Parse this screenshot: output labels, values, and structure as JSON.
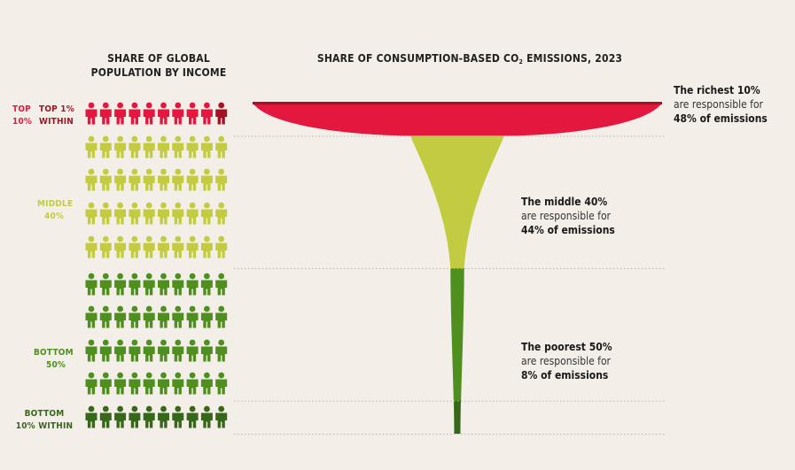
{
  "headers": {
    "population_line1": "SHARE OF GLOBAL",
    "population_line2": "POPULATION BY INCOME",
    "emissions_pre": "SHARE OF CONSUMPTION-BASED CO",
    "emissions_sub": "2",
    "emissions_post": " EMISSIONS, 2023"
  },
  "labels": {
    "top10_l1": "TOP",
    "top10_l2": "10%",
    "top1_l1": "TOP 1%",
    "top1_l2": "WITHIN",
    "middle_l1": "MIDDLE",
    "middle_l2": "40%",
    "bottom_l1": "BOTTOM",
    "bottom_l2": "50%",
    "bottom10_l1": "BOTTOM",
    "bottom10_l2": "10% WITHIN"
  },
  "callouts": {
    "rich_l1": "The richest 10%",
    "rich_l2": "are responsible for",
    "rich_l3": "48% of emissions",
    "middle_l1": "The middle 40%",
    "middle_l2": "are responsible for",
    "middle_l3": "44% of emissions",
    "poor_l1": "The poorest 50%",
    "poor_l2": "are responsible for",
    "poor_l3": "8% of emissions"
  },
  "colors": {
    "background": "#f3efe8",
    "top10": "#e4173e",
    "top1": "#a31323",
    "middle40": "#c3cc40",
    "bottom50": "#4e8f1f",
    "bottom10": "#37671a"
  },
  "chart_data": {
    "type": "pictogram-funnel",
    "population_grid": {
      "columns": 10,
      "rows": 10,
      "icon_represents": "1% of global population"
    },
    "series": [
      {
        "name": "Top 10%",
        "population_share": 10,
        "emission_share": 48
      },
      {
        "name": "Middle 40%",
        "population_share": 40,
        "emission_share": 44
      },
      {
        "name": "Bottom 50%",
        "population_share": 50,
        "emission_share": 8
      }
    ],
    "sub_groups": [
      {
        "name": "Top 1% within",
        "population_share": 1
      },
      {
        "name": "Bottom 10% within",
        "population_share": 10
      }
    ]
  }
}
